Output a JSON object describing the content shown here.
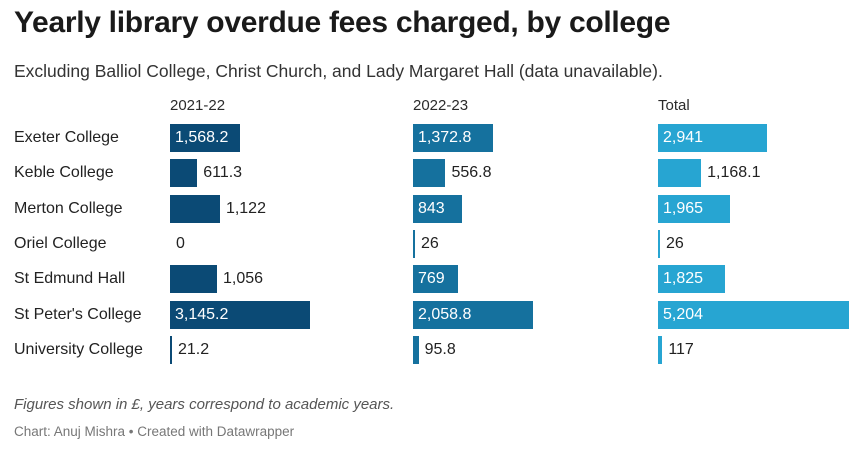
{
  "title": "Yearly library overdue fees charged, by college",
  "subtitle": "Excluding Balliol College, Christ Church, and Lady Margaret Hall (data unavailable).",
  "note": "Figures shown in £, years correspond to academic years.",
  "credit": "Chart: Anuj Mishra • Created with Datawrapper",
  "chart_data": {
    "type": "bar",
    "title": "Yearly library overdue fees charged, by college",
    "categories": [
      "Exeter College",
      "Keble College",
      "Merton College",
      "Oriel College",
      "St Edmund Hall",
      "St Peter's College",
      "University College"
    ],
    "series": [
      {
        "name": "2021-22",
        "color": "#0b4a75",
        "values": [
          1568.2,
          611.3,
          1122,
          0,
          1056,
          3145.2,
          21.2
        ],
        "labels": [
          "1,568.2",
          "611.3",
          "1,122",
          "0",
          "1,056",
          "3,145.2",
          "21.2"
        ]
      },
      {
        "name": "2022-23",
        "color": "#15719e",
        "values": [
          1372.8,
          556.8,
          843,
          26,
          769,
          2058.8,
          95.8
        ],
        "labels": [
          "1,372.8",
          "556.8",
          "843",
          "26",
          "769",
          "2,058.8",
          "95.8"
        ]
      },
      {
        "name": "Total",
        "color": "#27a5d2",
        "values": [
          2941,
          1168.1,
          1965,
          26,
          1825,
          5204,
          117
        ],
        "labels": [
          "2,941",
          "1,168.1",
          "1,965",
          "26",
          "1,825",
          "5,204",
          "117"
        ]
      }
    ]
  }
}
